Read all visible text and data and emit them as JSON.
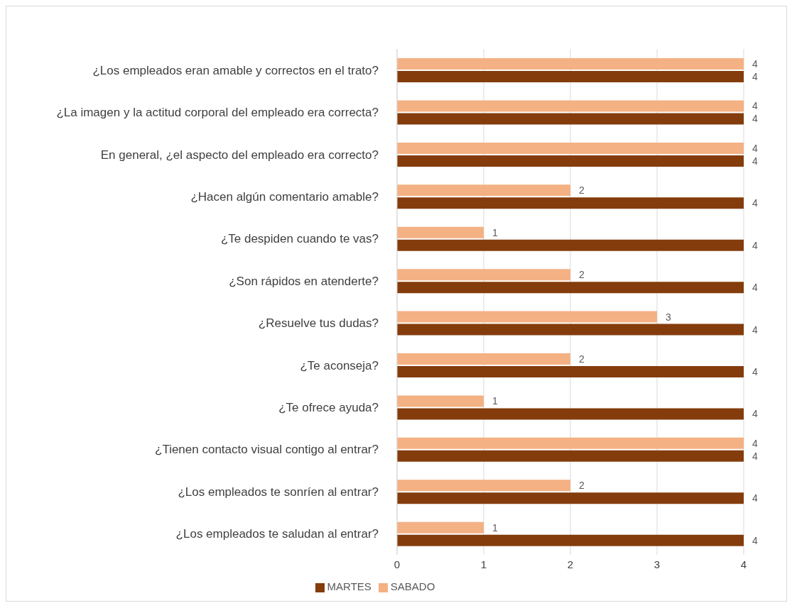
{
  "chart_data": {
    "type": "bar",
    "orientation": "horizontal",
    "categories": [
      "¿Los empleados eran amable y correctos en el trato?",
      "¿La imagen y la actitud corporal del empleado era correcta?",
      "En general, ¿el aspecto del empleado era correcto?",
      "¿Hacen algún comentario amable?",
      "¿Te despiden cuando te vas?",
      "¿Son rápidos en atenderte?",
      "¿Resuelve tus dudas?",
      "¿Te aconseja?",
      "¿Te ofrece ayuda?",
      "¿Tienen contacto visual contigo al entrar?",
      "¿Los empleados te sonríen al entrar?",
      "¿Los empleados te saludan al entrar?"
    ],
    "series": [
      {
        "name": "SABADO",
        "color": "#f4b183",
        "values": [
          4,
          4,
          4,
          2,
          1,
          2,
          3,
          2,
          1,
          4,
          2,
          1
        ]
      },
      {
        "name": "MARTES",
        "color": "#843c0c",
        "values": [
          4,
          4,
          4,
          4,
          4,
          4,
          4,
          4,
          4,
          4,
          4,
          4
        ]
      }
    ],
    "xlim": [
      0,
      4
    ],
    "xticks": [
      0,
      1,
      2,
      3,
      4
    ],
    "grid": "x",
    "legend": "bottom",
    "data_labels": true
  }
}
